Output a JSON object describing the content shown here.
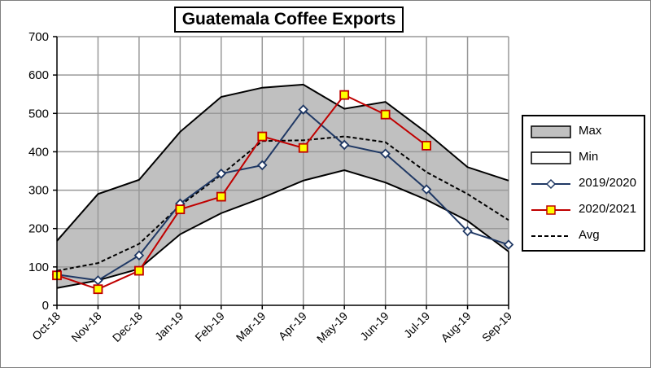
{
  "chart_data": {
    "type": "line",
    "title": "Guatemala Coffee Exports",
    "xlabel": "",
    "ylabel": "",
    "categories": [
      "Oct-18",
      "Nov-18",
      "Dec-18",
      "Jan-19",
      "Feb-19",
      "Mar-19",
      "Apr-19",
      "May-19",
      "Jun-19",
      "Jul-19",
      "Aug-19",
      "Sep-19"
    ],
    "ylim": [
      0,
      700
    ],
    "yticks": [
      0,
      100,
      200,
      300,
      400,
      500,
      600,
      700
    ],
    "grid": true,
    "legend_position": "right",
    "series": [
      {
        "name": "Max",
        "style": "area-upper",
        "color": "#c0c0c0",
        "values": [
          168,
          290,
          327,
          452,
          543,
          567,
          575,
          512,
          530,
          450,
          360,
          325
        ]
      },
      {
        "name": "Min",
        "style": "area-lower",
        "color": "#ffffff",
        "values": [
          45,
          65,
          95,
          185,
          240,
          280,
          325,
          352,
          320,
          275,
          220,
          140
        ]
      },
      {
        "name": "2019/2020",
        "style": "line-diamond",
        "color": "#1f3864",
        "values": [
          80,
          65,
          130,
          265,
          343,
          365,
          510,
          418,
          395,
          302,
          193,
          158
        ]
      },
      {
        "name": "2020/2021",
        "style": "line-square",
        "color": "#c00000",
        "values": [
          78,
          42,
          90,
          250,
          283,
          440,
          410,
          548,
          497,
          416,
          null,
          null
        ]
      },
      {
        "name": "Avg",
        "style": "dashed",
        "color": "#000000",
        "values": [
          90,
          110,
          160,
          260,
          340,
          428,
          430,
          440,
          425,
          347,
          290,
          222
        ]
      }
    ]
  }
}
